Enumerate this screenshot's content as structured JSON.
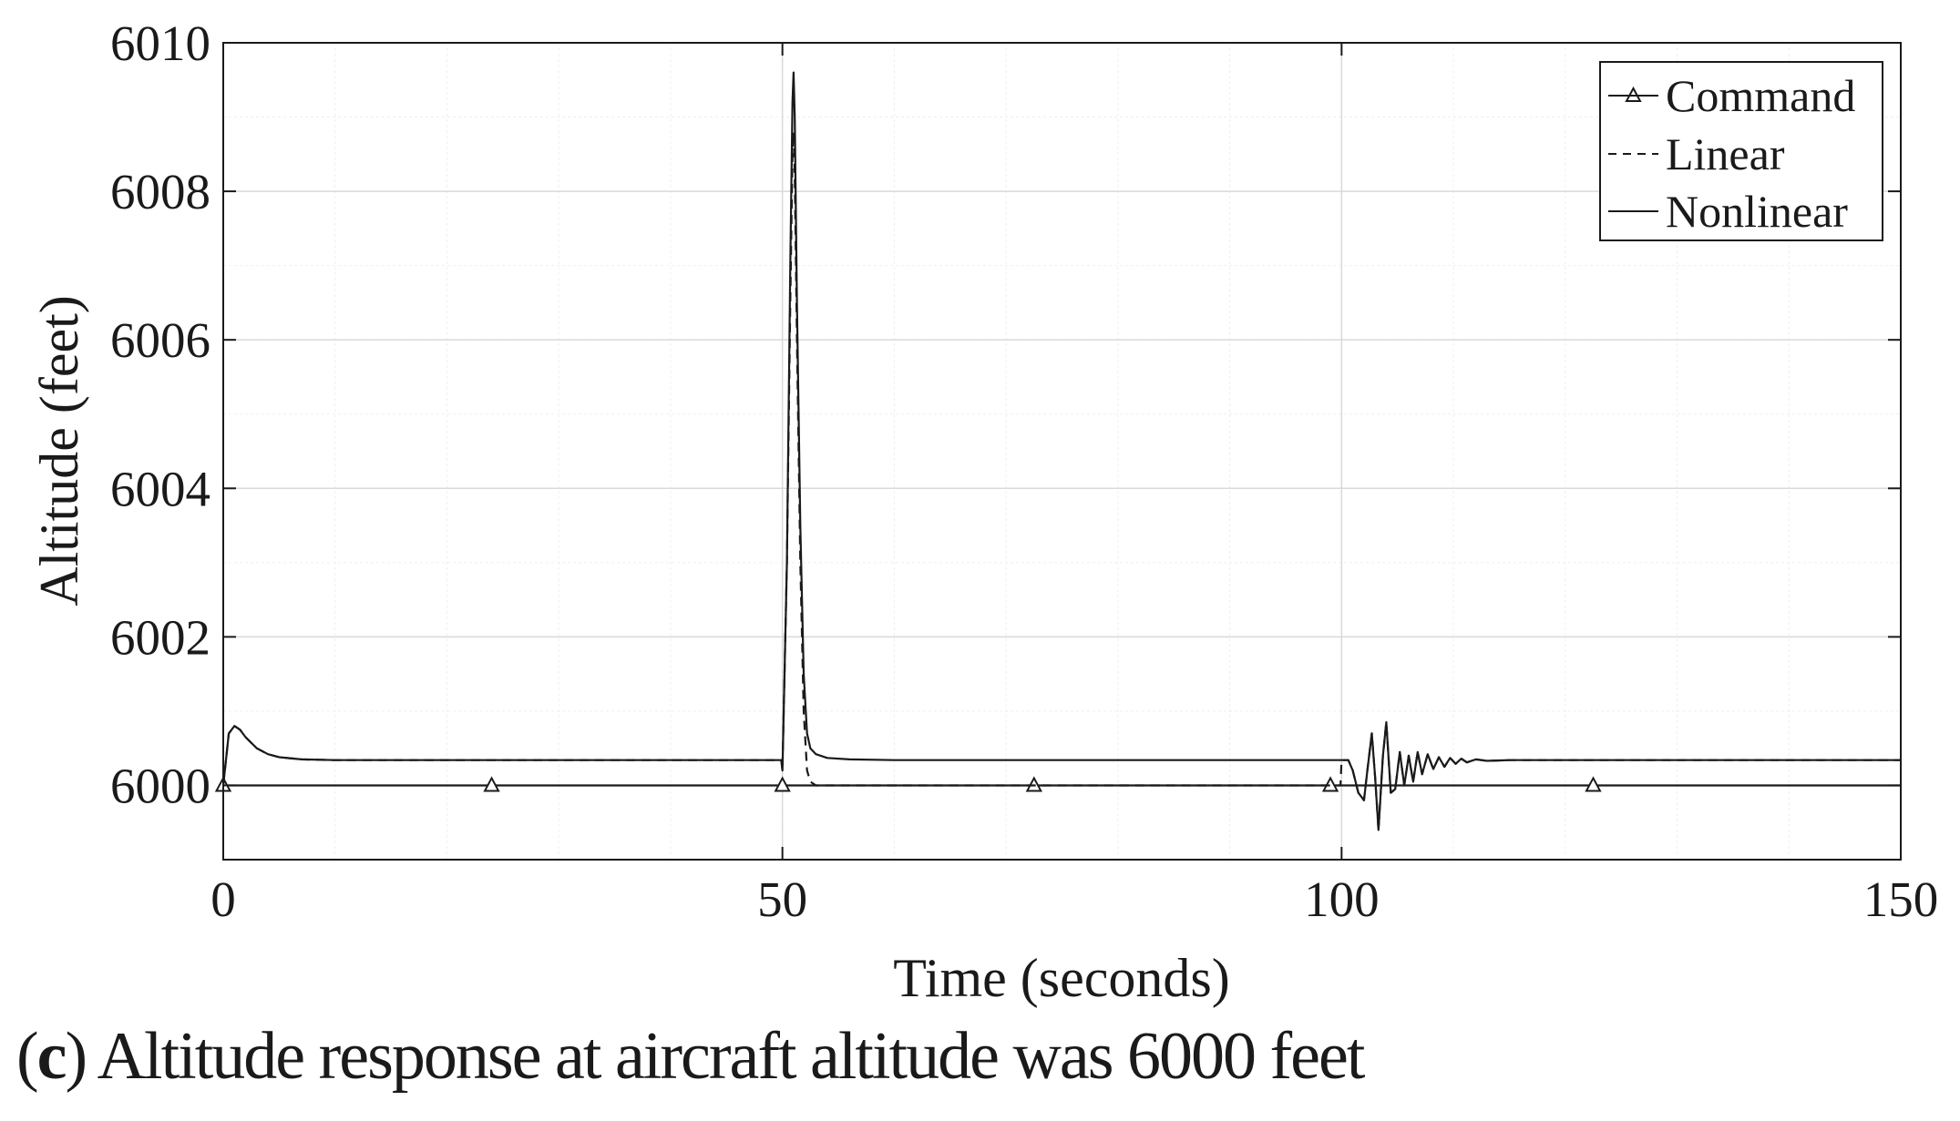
{
  "caption": {
    "letter": "c",
    "text": "Altitude response at aircraft altitude was 6000 feet"
  },
  "chart_data": {
    "type": "line",
    "xlabel": "Time (seconds)",
    "ylabel": "Altitude (feet)",
    "xlim": [
      0,
      150
    ],
    "ylim": [
      5999,
      6010
    ],
    "xticks": [
      0,
      50,
      100,
      150
    ],
    "yticks": [
      6000,
      6002,
      6004,
      6006,
      6008,
      6010
    ],
    "grid": true,
    "minor_grid": true,
    "legend_position": "top-right",
    "colors": {
      "line": "#1a1a1a",
      "grid": "#d9d9d9",
      "minor_grid": "#efefef"
    },
    "series": [
      {
        "name": "Command",
        "style": "solid-triangle-markers",
        "x": [
          0,
          150
        ],
        "y": [
          6000,
          6000
        ],
        "marker_x": [
          0,
          24,
          50,
          72.5,
          99,
          122.5
        ]
      },
      {
        "name": "Linear",
        "style": "dashed",
        "x": [
          0,
          0.5,
          1,
          1.5,
          2,
          3,
          4,
          5,
          7,
          10,
          20,
          30,
          40,
          49.9,
          50,
          50.4,
          50.7,
          50.9,
          51.0,
          51.1,
          51.3,
          51.6,
          51.9,
          52.2,
          52.5,
          53,
          55,
          60,
          80,
          99.9,
          100,
          100.6,
          101,
          101.5,
          102,
          102.3,
          102.7,
          103.0,
          103.3,
          103.7,
          104.0,
          104.4,
          104.8,
          105.2,
          105.6,
          106.0,
          106.4,
          106.8,
          107.2,
          107.7,
          108.2,
          108.7,
          109.2,
          109.7,
          110.2,
          110.7,
          111.2,
          112,
          113,
          115,
          118,
          122,
          130,
          150
        ],
        "y": [
          6000,
          6000.7,
          6000.8,
          6000.75,
          6000.65,
          6000.5,
          6000.42,
          6000.38,
          6000.35,
          6000.34,
          6000.34,
          6000.34,
          6000.34,
          6000.34,
          6000.2,
          6003.0,
          6006.5,
          6008.5,
          6008.8,
          6008.2,
          6006.0,
          6003.0,
          6001.0,
          6000.2,
          6000.05,
          6000.0,
          6000.0,
          6000.0,
          6000.0,
          6000.0,
          6000.34,
          6000.34,
          6000.2,
          5999.9,
          5999.8,
          6000.2,
          6000.7,
          6000.1,
          5999.4,
          6000.4,
          6000.85,
          5999.9,
          5999.95,
          6000.45,
          6000.0,
          6000.4,
          6000.05,
          6000.45,
          6000.15,
          6000.42,
          6000.22,
          6000.38,
          6000.25,
          6000.37,
          6000.29,
          6000.36,
          6000.31,
          6000.35,
          6000.33,
          6000.34,
          6000.34,
          6000.34,
          6000.34,
          6000.34
        ]
      },
      {
        "name": "Nonlinear",
        "style": "solid",
        "x": [
          0,
          0.5,
          1,
          1.5,
          2,
          3,
          4,
          5,
          7,
          10,
          20,
          30,
          40,
          49.9,
          50,
          50.4,
          50.7,
          50.9,
          51.0,
          51.1,
          51.3,
          51.6,
          51.9,
          52.2,
          52.5,
          53,
          54,
          56,
          60,
          70,
          80,
          90,
          99.9,
          100,
          100.6,
          101,
          101.5,
          102,
          102.3,
          102.7,
          103.0,
          103.3,
          103.7,
          104.0,
          104.4,
          104.8,
          105.2,
          105.6,
          106.0,
          106.4,
          106.8,
          107.2,
          107.7,
          108.2,
          108.7,
          109.2,
          109.7,
          110.2,
          110.7,
          111.2,
          112,
          113,
          115,
          118,
          122,
          130,
          150
        ],
        "y": [
          6000,
          6000.7,
          6000.8,
          6000.75,
          6000.65,
          6000.5,
          6000.42,
          6000.38,
          6000.35,
          6000.34,
          6000.34,
          6000.34,
          6000.34,
          6000.34,
          6000.2,
          6003.0,
          6007.0,
          6009.2,
          6009.6,
          6009.0,
          6006.5,
          6003.5,
          6001.5,
          6000.7,
          6000.5,
          6000.42,
          6000.37,
          6000.35,
          6000.34,
          6000.34,
          6000.34,
          6000.34,
          6000.34,
          6000.34,
          6000.34,
          6000.2,
          5999.9,
          5999.8,
          6000.2,
          6000.7,
          6000.1,
          5999.4,
          6000.4,
          6000.85,
          5999.9,
          5999.95,
          6000.45,
          6000.0,
          6000.4,
          6000.05,
          6000.45,
          6000.15,
          6000.42,
          6000.22,
          6000.38,
          6000.25,
          6000.37,
          6000.29,
          6000.36,
          6000.31,
          6000.35,
          6000.33,
          6000.34,
          6000.34,
          6000.34,
          6000.34,
          6000.34
        ]
      }
    ]
  }
}
